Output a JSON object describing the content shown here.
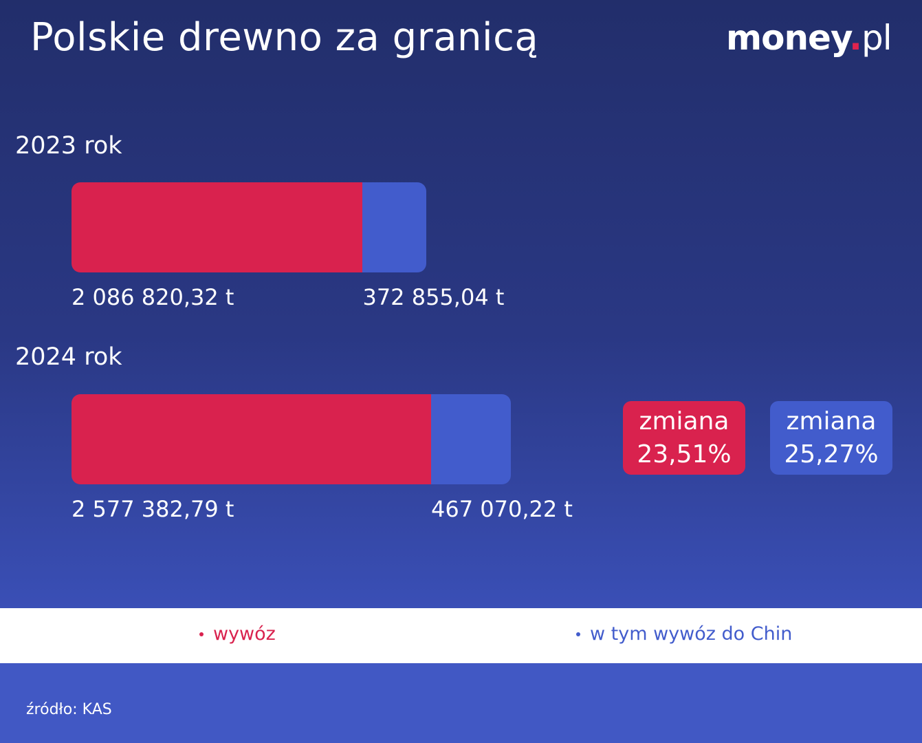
{
  "title": "Polskie drewno za granicą",
  "logo": {
    "main": "money",
    "dot": ".",
    "suffix": "pl"
  },
  "colors": {
    "wywoz": "#d9224e",
    "chiny": "#425ccc",
    "background_top": "#222e6b",
    "background_bottom": "#3a4fb6"
  },
  "chart_data": {
    "type": "bar",
    "orientation": "horizontal",
    "stacked_overlay": true,
    "unit": "t",
    "categories": [
      "2023 rok",
      "2024 rok"
    ],
    "series": [
      {
        "name": "wywóz",
        "values": [
          2086820.32,
          2577382.79
        ],
        "labels": [
          "2 086 820,32 t",
          "2 577 382,79 t"
        ]
      },
      {
        "name": "w tym wywóz do Chin",
        "values": [
          372855.04,
          467070.22
        ],
        "labels": [
          "372 855,04 t",
          "467 070,22 t"
        ]
      }
    ],
    "changes": [
      {
        "series": "wywóz",
        "label": "zmiana",
        "value": "23,51%"
      },
      {
        "series": "w tym wywóz do Chin",
        "label": "zmiana",
        "value": "25,27%"
      }
    ]
  },
  "legend": {
    "wywoz": "wywóz",
    "chiny": "w tym wywóz do Chin"
  },
  "source": "źródło: KAS"
}
